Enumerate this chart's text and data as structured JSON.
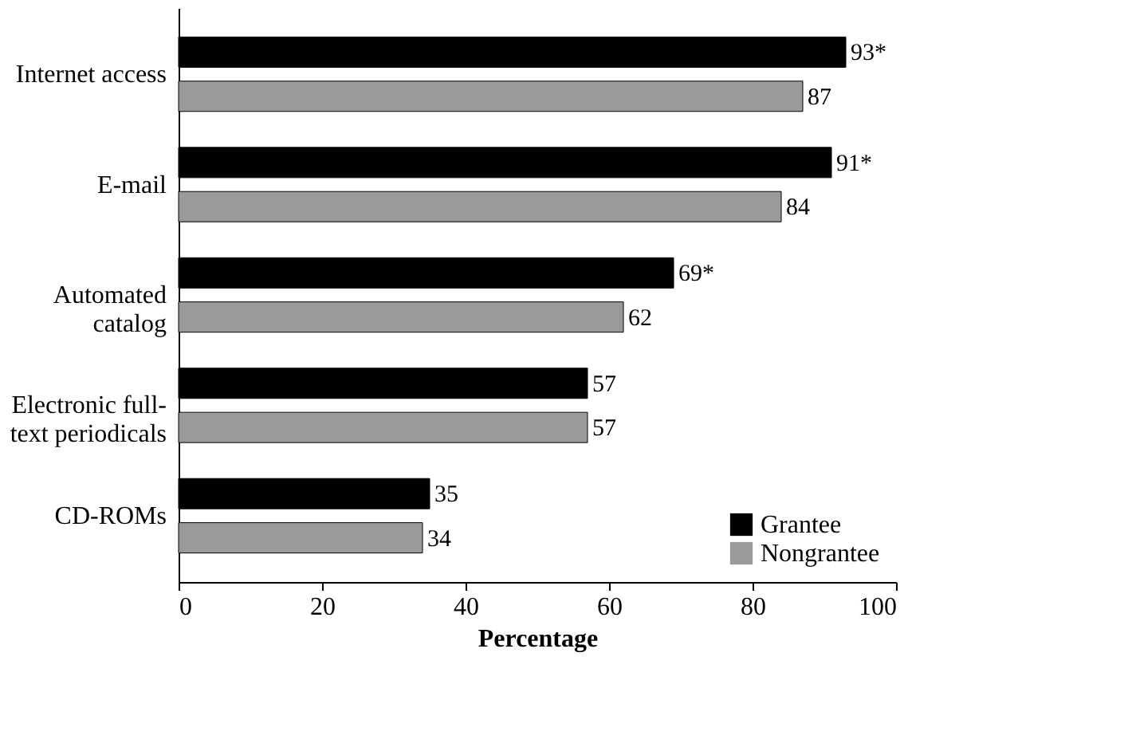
{
  "chart_data": {
    "type": "bar",
    "orientation": "horizontal",
    "xlabel": "Percentage",
    "categories": [
      "Internet access",
      "E-mail",
      "Automated catalog",
      "Electronic full-text periodicals",
      "CD-ROMs"
    ],
    "series": [
      {
        "name": "Grantee",
        "color": "#000000",
        "values": [
          93,
          91,
          69,
          57,
          35
        ],
        "value_labels": [
          "93*",
          "91*",
          "69*",
          "57",
          "35"
        ]
      },
      {
        "name": "Nongrantee",
        "color": "#9a9a9a",
        "values": [
          87,
          84,
          62,
          57,
          34
        ],
        "value_labels": [
          "87",
          "84",
          "62",
          "57",
          "34"
        ]
      }
    ],
    "xlim": [
      0,
      100
    ],
    "xticks": [
      0,
      20,
      40,
      60,
      80,
      100
    ],
    "grid": false,
    "legend": "bottom right"
  }
}
